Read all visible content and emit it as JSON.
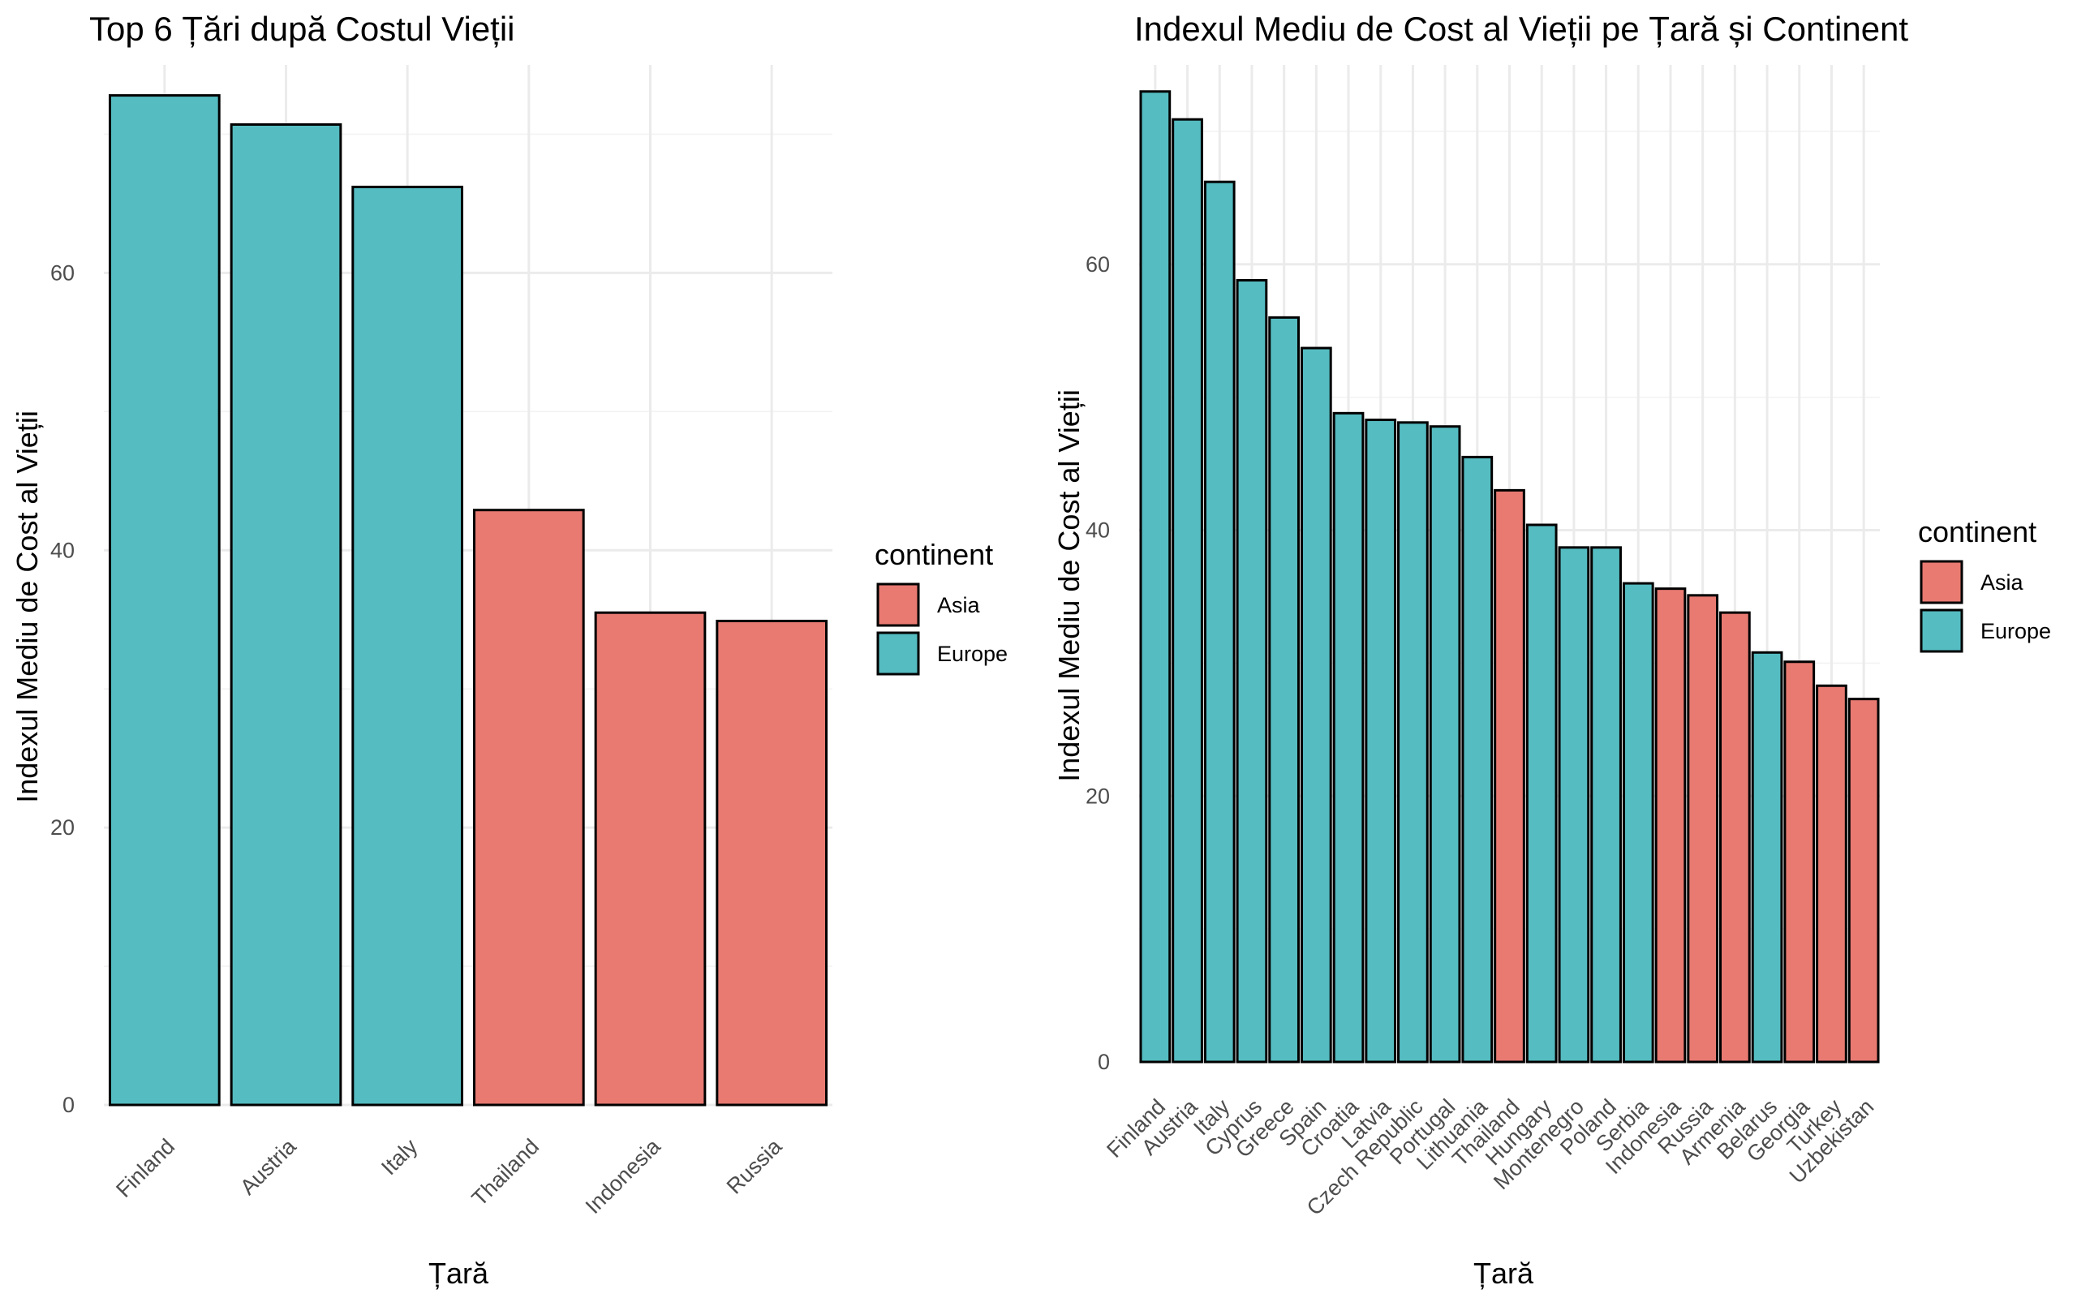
{
  "colors": {
    "Asia": "#E87A72",
    "Europe": "#55BCC1",
    "bar_outline": "#000000",
    "grid_major": "#EBEBEB",
    "grid_minor": "#F3F3F3",
    "tick_text": "#4D4D4D",
    "background": "#FFFFFF"
  },
  "chart_data": [
    {
      "type": "bar",
      "title": "Top 6 Țări după Costul Vieții",
      "xlabel": "Țară",
      "ylabel": "Indexul Mediu de Cost al Vieții",
      "categories": [
        "Finland",
        "Austria",
        "Italy",
        "Thailand",
        "Indonesia",
        "Russia"
      ],
      "values": [
        72.8,
        70.7,
        66.2,
        42.9,
        35.5,
        34.9
      ],
      "continent": [
        "Europe",
        "Europe",
        "Europe",
        "Asia",
        "Asia",
        "Asia"
      ],
      "ylim": [
        0,
        75
      ],
      "y_ticks": [
        0,
        20,
        40,
        60
      ],
      "y_tick_labels": [
        "0",
        "20",
        "40",
        "60"
      ],
      "legend": {
        "title": "continent",
        "position": "right",
        "entries": [
          "Asia",
          "Europe"
        ]
      },
      "grid": true
    },
    {
      "type": "bar",
      "title": "Indexul Mediu de Cost al Vieții pe Țară și Continent",
      "xlabel": "Țară",
      "ylabel": "Indexul Mediu de Cost al Vieții",
      "categories": [
        "Finland",
        "Austria",
        "Italy",
        "Cyprus",
        "Greece",
        "Spain",
        "Croatia",
        "Latvia",
        "Czech Republic",
        "Portugal",
        "Lithuania",
        "Thailand",
        "Hungary",
        "Montenegro",
        "Poland",
        "Serbia",
        "Indonesia",
        "Russia",
        "Armenia",
        "Belarus",
        "Georgia",
        "Turkey",
        "Uzbekistan"
      ],
      "values": [
        73.0,
        70.9,
        66.2,
        58.8,
        56.0,
        53.7,
        48.8,
        48.3,
        48.1,
        47.8,
        45.5,
        43.0,
        40.4,
        38.7,
        38.7,
        36.0,
        35.6,
        35.1,
        33.8,
        30.8,
        30.1,
        28.3,
        27.3
      ],
      "continent": [
        "Europe",
        "Europe",
        "Europe",
        "Europe",
        "Europe",
        "Europe",
        "Europe",
        "Europe",
        "Europe",
        "Europe",
        "Europe",
        "Asia",
        "Europe",
        "Europe",
        "Europe",
        "Europe",
        "Asia",
        "Asia",
        "Asia",
        "Europe",
        "Asia",
        "Asia",
        "Asia"
      ],
      "ylim": [
        0,
        75
      ],
      "y_ticks": [
        0,
        20,
        40,
        60
      ],
      "y_tick_labels": [
        "0",
        "20",
        "40",
        "60"
      ],
      "legend": {
        "title": "continent",
        "position": "right",
        "entries": [
          "Asia",
          "Europe"
        ]
      },
      "grid": true
    }
  ]
}
